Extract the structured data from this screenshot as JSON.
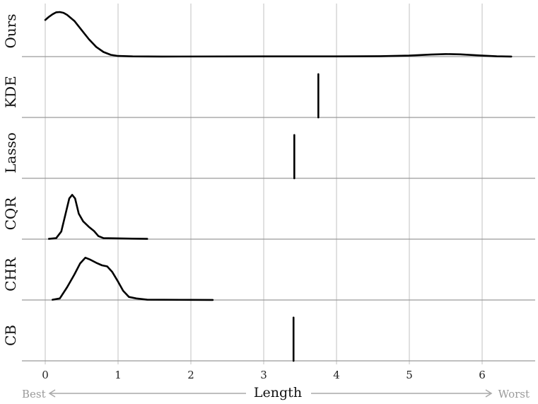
{
  "chart_data": {
    "type": "ridgeline-density",
    "xlabel": "Length",
    "xlim": [
      -0.3,
      6.75
    ],
    "x_ticks": [
      "0",
      "1",
      "2",
      "3",
      "4",
      "5",
      "6"
    ],
    "x_tick_values": [
      0,
      1,
      2,
      3,
      4,
      5,
      6
    ],
    "direction_labels": {
      "left": "Best",
      "right": "Worst"
    },
    "grid": true,
    "series": [
      {
        "name": "Ours",
        "points": [
          [
            0,
            0.72
          ],
          [
            0.05,
            0.78
          ],
          [
            0.1,
            0.83
          ],
          [
            0.15,
            0.87
          ],
          [
            0.2,
            0.875
          ],
          [
            0.25,
            0.86
          ],
          [
            0.3,
            0.82
          ],
          [
            0.4,
            0.7
          ],
          [
            0.5,
            0.52
          ],
          [
            0.6,
            0.34
          ],
          [
            0.7,
            0.19
          ],
          [
            0.8,
            0.09
          ],
          [
            0.9,
            0.035
          ],
          [
            1.0,
            0.012
          ],
          [
            1.2,
            0.004
          ],
          [
            1.6,
            0.002
          ],
          [
            3.0,
            0.004
          ],
          [
            4.0,
            0.004
          ],
          [
            4.6,
            0.008
          ],
          [
            5.0,
            0.02
          ],
          [
            5.3,
            0.04
          ],
          [
            5.5,
            0.05
          ],
          [
            5.7,
            0.045
          ],
          [
            6.0,
            0.02
          ],
          [
            6.2,
            0.006
          ],
          [
            6.4,
            0.001
          ]
        ]
      },
      {
        "name": "KDE",
        "points": [
          [
            3.75,
            0
          ],
          [
            3.75,
            0.85
          ]
        ]
      },
      {
        "name": "Lasso",
        "points": [
          [
            3.42,
            0
          ],
          [
            3.42,
            0.85
          ]
        ]
      },
      {
        "name": "CQR",
        "points": [
          [
            0.05,
            0.005
          ],
          [
            0.15,
            0.02
          ],
          [
            0.22,
            0.15
          ],
          [
            0.28,
            0.5
          ],
          [
            0.33,
            0.8
          ],
          [
            0.37,
            0.87
          ],
          [
            0.41,
            0.8
          ],
          [
            0.46,
            0.5
          ],
          [
            0.52,
            0.35
          ],
          [
            0.6,
            0.24
          ],
          [
            0.67,
            0.16
          ],
          [
            0.73,
            0.06
          ],
          [
            0.8,
            0.02
          ],
          [
            1.0,
            0.015
          ],
          [
            1.2,
            0.01
          ],
          [
            1.4,
            0.005
          ]
        ]
      },
      {
        "name": "CHR",
        "points": [
          [
            0.1,
            0.005
          ],
          [
            0.2,
            0.03
          ],
          [
            0.3,
            0.25
          ],
          [
            0.4,
            0.5
          ],
          [
            0.48,
            0.72
          ],
          [
            0.55,
            0.83
          ],
          [
            0.62,
            0.79
          ],
          [
            0.7,
            0.73
          ],
          [
            0.78,
            0.68
          ],
          [
            0.85,
            0.66
          ],
          [
            0.92,
            0.55
          ],
          [
            1.0,
            0.36
          ],
          [
            1.07,
            0.18
          ],
          [
            1.15,
            0.06
          ],
          [
            1.25,
            0.03
          ],
          [
            1.4,
            0.005
          ],
          [
            2.0,
            0.003
          ],
          [
            2.3,
            0.002
          ]
        ]
      },
      {
        "name": "CB",
        "points": [
          [
            3.41,
            0
          ],
          [
            3.41,
            0.85
          ]
        ]
      }
    ]
  }
}
